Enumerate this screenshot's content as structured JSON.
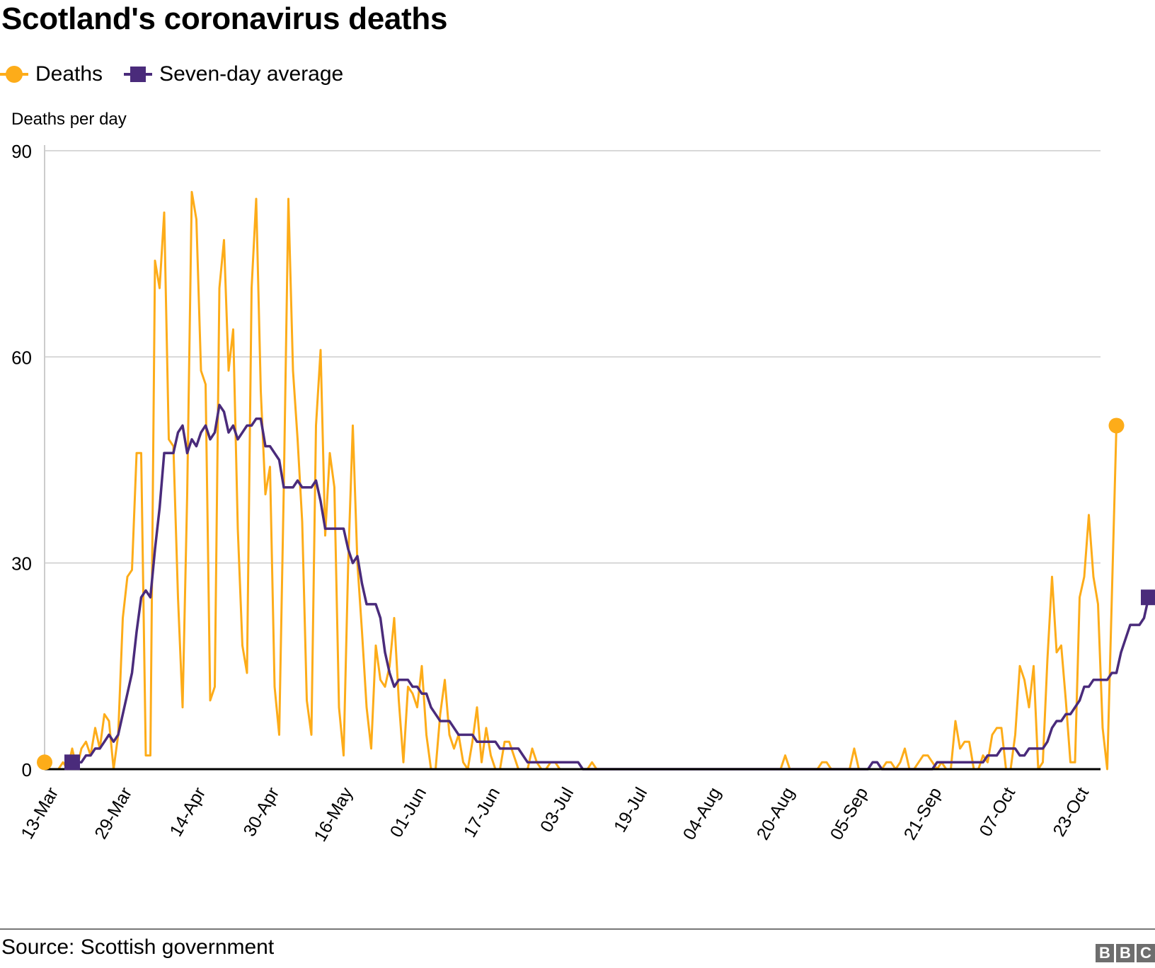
{
  "title": "Scotland's coronavirus deaths",
  "legend": [
    {
      "label": "Deaths",
      "color": "#fdac19",
      "marker": "circle"
    },
    {
      "label": "Seven-day average",
      "color": "#4a2b7b",
      "marker": "square"
    }
  ],
  "footer": {
    "source": "Source: Scottish government",
    "logo": [
      "B",
      "B",
      "C"
    ]
  },
  "chart_data": {
    "type": "line",
    "title": "Scotland's coronavirus deaths",
    "xlabel": "",
    "ylabel": "Deaths per day",
    "ylim": [
      0,
      90
    ],
    "yticks": [
      0,
      30,
      60,
      90
    ],
    "grid": true,
    "legend_position": "top-left",
    "x_start": "13-Mar",
    "x_end": "02-Nov",
    "xtick_labels": [
      "13-Mar",
      "29-Mar",
      "14-Apr",
      "30-Apr",
      "16-May",
      "01-Jun",
      "17-Jun",
      "03-Jul",
      "19-Jul",
      "04-Aug",
      "20-Aug",
      "05-Sep",
      "21-Sep",
      "07-Oct",
      "23-Oct"
    ],
    "xtick_interval_days": 16,
    "series": [
      {
        "name": "Deaths",
        "color": "#fdac19",
        "values": [
          1,
          0,
          0,
          0,
          1,
          0,
          3,
          0,
          3,
          4,
          2,
          6,
          3,
          8,
          7,
          0,
          5,
          22,
          28,
          29,
          46,
          46,
          2,
          2,
          74,
          70,
          81,
          48,
          47,
          25,
          9,
          40,
          84,
          80,
          58,
          56,
          10,
          12,
          70,
          77,
          58,
          64,
          35,
          18,
          14,
          70,
          83,
          55,
          40,
          44,
          12,
          5,
          41,
          83,
          58,
          48,
          36,
          10,
          5,
          50,
          61,
          34,
          46,
          41,
          9,
          2,
          30,
          50,
          30,
          20,
          9,
          3,
          18,
          13,
          12,
          15,
          22,
          10,
          1,
          12,
          11,
          9,
          15,
          5,
          0,
          0,
          8,
          13,
          5,
          3,
          5,
          1,
          0,
          4,
          9,
          1,
          6,
          2,
          0,
          0,
          4,
          4,
          2,
          0,
          0,
          0,
          3,
          1,
          0,
          0,
          1,
          1,
          0,
          0,
          0,
          0,
          0,
          0,
          0,
          1,
          0,
          0,
          0,
          0,
          0,
          0,
          0,
          0,
          0,
          0,
          0,
          0,
          0,
          0,
          0,
          0,
          0,
          0,
          0,
          0,
          0,
          0,
          0,
          0,
          0,
          0,
          0,
          0,
          0,
          0,
          0,
          0,
          0,
          0,
          0,
          0,
          0,
          0,
          0,
          0,
          0,
          2,
          0,
          0,
          0,
          0,
          0,
          0,
          0,
          1,
          1,
          0,
          0,
          0,
          0,
          0,
          3,
          0,
          0,
          0,
          0,
          0,
          0,
          1,
          1,
          0,
          1,
          3,
          0,
          0,
          1,
          2,
          2,
          1,
          0,
          1,
          0,
          0,
          7,
          3,
          4,
          4,
          0,
          0,
          2,
          1,
          5,
          6,
          6,
          0,
          0,
          5,
          15,
          13,
          9,
          15,
          0,
          1,
          16,
          28,
          17,
          18,
          10,
          1,
          1,
          25,
          28,
          37,
          28,
          24,
          6,
          0,
          25,
          50
        ],
        "end_marker": "circle"
      },
      {
        "name": "Seven-day average",
        "color": "#4a2b7b",
        "values": [
          null,
          null,
          null,
          null,
          null,
          null,
          1,
          1,
          1,
          2,
          2,
          3,
          3,
          4,
          5,
          4,
          5,
          8,
          11,
          14,
          20,
          25,
          26,
          25,
          32,
          38,
          46,
          46,
          46,
          49,
          50,
          46,
          48,
          47,
          49,
          50,
          48,
          49,
          53,
          52,
          49,
          50,
          48,
          49,
          50,
          50,
          51,
          51,
          47,
          47,
          46,
          45,
          41,
          41,
          41,
          42,
          41,
          41,
          41,
          42,
          39,
          35,
          35,
          35,
          35,
          35,
          32,
          30,
          31,
          27,
          24,
          24,
          24,
          22,
          17,
          14,
          12,
          13,
          13,
          13,
          12,
          12,
          11,
          11,
          9,
          8,
          7,
          7,
          7,
          6,
          5,
          5,
          5,
          5,
          4,
          4,
          4,
          4,
          4,
          3,
          3,
          3,
          3,
          3,
          2,
          1,
          1,
          1,
          1,
          1,
          1,
          1,
          1,
          1,
          1,
          1,
          1,
          0,
          0,
          0,
          0,
          0,
          0,
          0,
          0,
          0,
          0,
          0,
          0,
          0,
          0,
          0,
          0,
          0,
          0,
          0,
          0,
          0,
          0,
          0,
          0,
          0,
          0,
          0,
          0,
          0,
          0,
          0,
          0,
          0,
          0,
          0,
          0,
          0,
          0,
          0,
          0,
          0,
          0,
          0,
          0,
          0,
          0,
          0,
          0,
          0,
          0,
          0,
          0,
          0,
          0,
          0,
          0,
          0,
          0,
          0,
          0,
          0,
          0,
          0,
          1,
          1,
          0,
          0,
          0,
          0,
          0,
          0,
          0,
          0,
          0,
          0,
          0,
          0,
          1,
          1,
          1,
          1,
          1,
          1,
          1,
          1,
          1,
          1,
          1,
          2,
          2,
          2,
          3,
          3,
          3,
          3,
          2,
          2,
          3,
          3,
          3,
          3,
          4,
          6,
          7,
          7,
          8,
          8,
          9,
          10,
          12,
          12,
          13,
          13,
          13,
          13,
          14,
          14,
          17,
          19,
          21,
          21,
          21,
          22,
          25
        ],
        "start_marker": "square",
        "end_marker": "square"
      }
    ]
  }
}
